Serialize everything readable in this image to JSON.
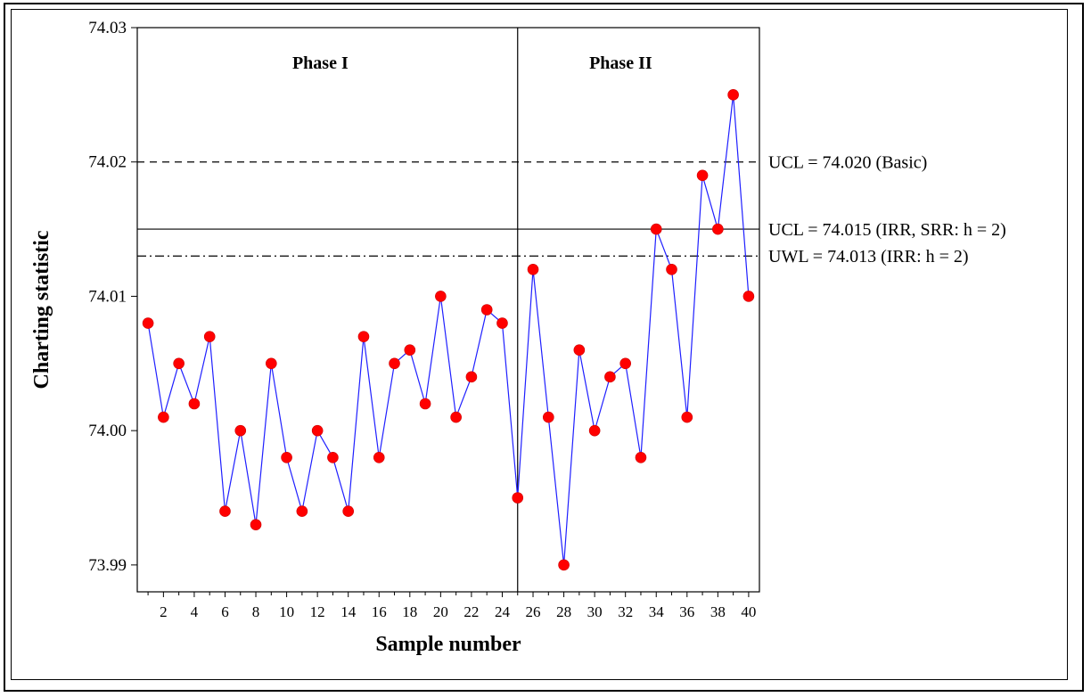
{
  "chart_data": {
    "type": "line",
    "xlabel": "Sample number",
    "ylabel": "Charting statistic",
    "xlim": [
      0.3,
      40.7
    ],
    "ylim": [
      73.988,
      74.03
    ],
    "y_ticks": [
      73.99,
      74.0,
      74.01,
      74.02,
      74.03
    ],
    "y_tick_labels": [
      "73.99",
      "74.00",
      "74.01",
      "74.02",
      "74.03"
    ],
    "x_ticks": [
      2,
      4,
      6,
      8,
      10,
      12,
      14,
      16,
      18,
      20,
      22,
      24,
      26,
      28,
      30,
      32,
      34,
      36,
      38,
      40
    ],
    "x_tick_labels": [
      "2",
      "4",
      "6",
      "8",
      "10",
      "12",
      "14",
      "16",
      "18",
      "20",
      "22",
      "24",
      "26",
      "28",
      "30",
      "32",
      "34",
      "36",
      "38",
      "40"
    ],
    "series": [
      {
        "color": "#1f1fff",
        "marker_color": "#ff0000",
        "x": [
          1,
          2,
          3,
          4,
          5,
          6,
          7,
          8,
          9,
          10,
          11,
          12,
          13,
          14,
          15,
          16,
          17,
          18,
          19,
          20,
          21,
          22,
          23,
          24,
          25,
          26,
          27,
          28,
          29,
          30,
          31,
          32,
          33,
          34,
          35,
          36,
          37,
          38,
          39,
          40
        ],
        "y": [
          74.008,
          74.001,
          74.005,
          74.002,
          74.007,
          73.994,
          74.0,
          73.993,
          74.005,
          73.998,
          73.994,
          74.0,
          73.998,
          73.994,
          74.007,
          73.998,
          74.005,
          74.006,
          74.002,
          74.01,
          74.001,
          74.004,
          74.009,
          74.008,
          73.995,
          74.012,
          74.001,
          73.99,
          74.006,
          74.0,
          74.004,
          74.005,
          73.998,
          74.015,
          74.012,
          74.001,
          74.019,
          74.015,
          74.025,
          74.01
        ]
      }
    ],
    "reference_lines": [
      {
        "y": 74.02,
        "style": "dashed",
        "label": "UCL = 74.020 (Basic)"
      },
      {
        "y": 74.015,
        "style": "solid",
        "label": "UCL = 74.015 (IRR, SRR: h = 2)"
      },
      {
        "y": 74.013,
        "style": "dashdot",
        "label": "UWL = 74.013 (IRR: h = 2)"
      }
    ],
    "phase_divider_x": 25,
    "phases": [
      {
        "label": "Phase I"
      },
      {
        "label": "Phase II"
      }
    ],
    "grid": false,
    "legend": "none"
  }
}
